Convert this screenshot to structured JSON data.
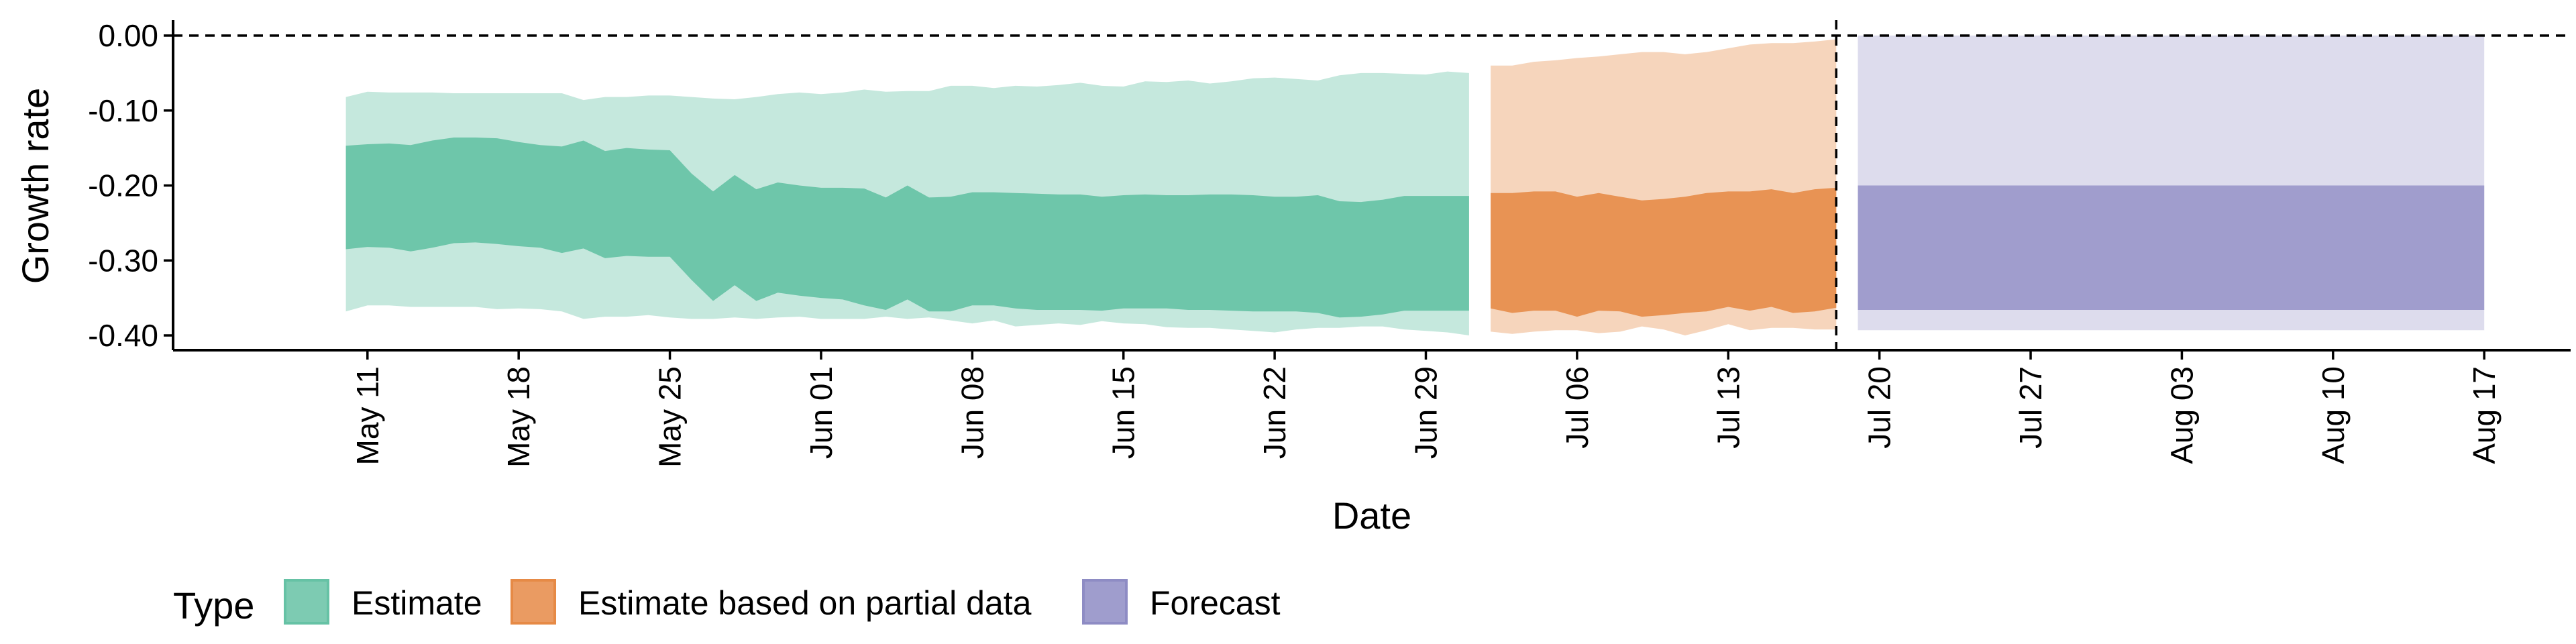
{
  "chart_data": {
    "type": "area",
    "title": "",
    "xlabel": "Date",
    "ylabel": "Growth rate",
    "x_is_date": true,
    "xlim": [
      "2020-05-02",
      "2020-08-21"
    ],
    "ylim": [
      -0.42,
      0.02
    ],
    "y_ticks": [
      0.0,
      -0.1,
      -0.2,
      -0.3,
      -0.4
    ],
    "y_tick_labels": [
      "0.00",
      "-0.10",
      "-0.20",
      "-0.30",
      "-0.40"
    ],
    "x_ticks": [
      "2020-05-11",
      "2020-05-18",
      "2020-05-25",
      "2020-06-01",
      "2020-06-08",
      "2020-06-15",
      "2020-06-22",
      "2020-06-29",
      "2020-07-06",
      "2020-07-13",
      "2020-07-20",
      "2020-07-27",
      "2020-08-03",
      "2020-08-10",
      "2020-08-17"
    ],
    "x_tick_labels": [
      "May 11",
      "May 18",
      "May 25",
      "Jun 01",
      "Jun 08",
      "Jun 15",
      "Jun 22",
      "Jun 29",
      "Jul 06",
      "Jul 13",
      "Jul 20",
      "Jul 27",
      "Aug 03",
      "Aug 10",
      "Aug 17"
    ],
    "reference_lines": {
      "horizontal_y": 0.0,
      "vertical_x": "2020-07-18"
    },
    "grid": false,
    "legend": {
      "title": "Type",
      "position": "bottom",
      "entries": [
        {
          "label": "Estimate",
          "color": "#66c2a5"
        },
        {
          "label": "Estimate based on partial data",
          "color": "#e68a46"
        },
        {
          "label": "Forecast",
          "color": "#8e8cc4"
        }
      ]
    },
    "series": [
      {
        "name": "Estimate",
        "fill_color": "#66c2a5",
        "inner_opacity": 0.92,
        "outer_opacity": 0.38,
        "x": [
          "2020-05-10",
          "2020-05-11",
          "2020-05-12",
          "2020-05-13",
          "2020-05-14",
          "2020-05-15",
          "2020-05-16",
          "2020-05-17",
          "2020-05-18",
          "2020-05-19",
          "2020-05-20",
          "2020-05-21",
          "2020-05-22",
          "2020-05-23",
          "2020-05-24",
          "2020-05-25",
          "2020-05-26",
          "2020-05-27",
          "2020-05-28",
          "2020-05-29",
          "2020-05-30",
          "2020-05-31",
          "2020-06-01",
          "2020-06-02",
          "2020-06-03",
          "2020-06-04",
          "2020-06-05",
          "2020-06-06",
          "2020-06-07",
          "2020-06-08",
          "2020-06-09",
          "2020-06-10",
          "2020-06-11",
          "2020-06-12",
          "2020-06-13",
          "2020-06-14",
          "2020-06-15",
          "2020-06-16",
          "2020-06-17",
          "2020-06-18",
          "2020-06-19",
          "2020-06-20",
          "2020-06-21",
          "2020-06-22",
          "2020-06-23",
          "2020-06-24",
          "2020-06-25",
          "2020-06-26",
          "2020-06-27",
          "2020-06-28",
          "2020-06-29",
          "2020-06-30",
          "2020-07-01"
        ],
        "lower_90": [
          -0.368,
          -0.36,
          -0.36,
          -0.362,
          -0.362,
          -0.362,
          -0.362,
          -0.365,
          -0.364,
          -0.365,
          -0.368,
          -0.378,
          -0.375,
          -0.375,
          -0.373,
          -0.376,
          -0.378,
          -0.378,
          -0.376,
          -0.378,
          -0.376,
          -0.375,
          -0.378,
          -0.378,
          -0.378,
          -0.375,
          -0.378,
          -0.376,
          -0.38,
          -0.384,
          -0.38,
          -0.388,
          -0.386,
          -0.384,
          -0.386,
          -0.381,
          -0.384,
          -0.385,
          -0.389,
          -0.39,
          -0.39,
          -0.392,
          -0.394,
          -0.396,
          -0.392,
          -0.39,
          -0.39,
          -0.388,
          -0.388,
          -0.392,
          -0.394,
          -0.396,
          -0.4
        ],
        "lower_50": [
          -0.285,
          -0.282,
          -0.283,
          -0.288,
          -0.283,
          -0.277,
          -0.276,
          -0.278,
          -0.281,
          -0.283,
          -0.29,
          -0.284,
          -0.297,
          -0.294,
          -0.295,
          -0.295,
          -0.326,
          -0.354,
          -0.333,
          -0.354,
          -0.343,
          -0.347,
          -0.35,
          -0.352,
          -0.36,
          -0.366,
          -0.352,
          -0.368,
          -0.368,
          -0.36,
          -0.36,
          -0.364,
          -0.366,
          -0.366,
          -0.366,
          -0.367,
          -0.364,
          -0.364,
          -0.364,
          -0.366,
          -0.366,
          -0.367,
          -0.368,
          -0.368,
          -0.368,
          -0.37,
          -0.376,
          -0.375,
          -0.372,
          -0.367,
          -0.367,
          -0.367,
          -0.367
        ],
        "upper_50": [
          -0.147,
          -0.145,
          -0.144,
          -0.146,
          -0.14,
          -0.136,
          -0.136,
          -0.137,
          -0.142,
          -0.146,
          -0.148,
          -0.14,
          -0.154,
          -0.15,
          -0.152,
          -0.153,
          -0.184,
          -0.208,
          -0.186,
          -0.205,
          -0.196,
          -0.2,
          -0.203,
          -0.203,
          -0.204,
          -0.216,
          -0.2,
          -0.216,
          -0.215,
          -0.209,
          -0.209,
          -0.21,
          -0.211,
          -0.212,
          -0.212,
          -0.215,
          -0.213,
          -0.212,
          -0.213,
          -0.213,
          -0.212,
          -0.212,
          -0.213,
          -0.215,
          -0.215,
          -0.213,
          -0.221,
          -0.222,
          -0.219,
          -0.214,
          -0.214,
          -0.214,
          -0.214
        ],
        "upper_90": [
          -0.082,
          -0.075,
          -0.076,
          -0.076,
          -0.076,
          -0.077,
          -0.077,
          -0.077,
          -0.077,
          -0.077,
          -0.077,
          -0.086,
          -0.082,
          -0.082,
          -0.08,
          -0.08,
          -0.082,
          -0.084,
          -0.085,
          -0.082,
          -0.078,
          -0.076,
          -0.078,
          -0.076,
          -0.072,
          -0.075,
          -0.074,
          -0.074,
          -0.067,
          -0.067,
          -0.07,
          -0.067,
          -0.068,
          -0.066,
          -0.063,
          -0.067,
          -0.068,
          -0.061,
          -0.062,
          -0.06,
          -0.064,
          -0.061,
          -0.057,
          -0.056,
          -0.058,
          -0.06,
          -0.053,
          -0.05,
          -0.05,
          -0.051,
          -0.052,
          -0.048,
          -0.05
        ]
      },
      {
        "name": "Estimate based on partial data",
        "fill_color": "#e68a46",
        "inner_opacity": 0.88,
        "outer_opacity": 0.36,
        "x": [
          "2020-07-02",
          "2020-07-03",
          "2020-07-04",
          "2020-07-05",
          "2020-07-06",
          "2020-07-07",
          "2020-07-08",
          "2020-07-09",
          "2020-07-10",
          "2020-07-11",
          "2020-07-12",
          "2020-07-13",
          "2020-07-14",
          "2020-07-15",
          "2020-07-16",
          "2020-07-17",
          "2020-07-18"
        ],
        "lower_90": [
          -0.395,
          -0.398,
          -0.395,
          -0.393,
          -0.393,
          -0.397,
          -0.395,
          -0.388,
          -0.392,
          -0.4,
          -0.393,
          -0.385,
          -0.393,
          -0.39,
          -0.39,
          -0.392,
          -0.392
        ],
        "lower_50": [
          -0.364,
          -0.37,
          -0.367,
          -0.367,
          -0.375,
          -0.367,
          -0.368,
          -0.375,
          -0.373,
          -0.37,
          -0.368,
          -0.362,
          -0.367,
          -0.362,
          -0.37,
          -0.368,
          -0.363
        ],
        "upper_50": [
          -0.21,
          -0.21,
          -0.208,
          -0.208,
          -0.215,
          -0.21,
          -0.215,
          -0.22,
          -0.218,
          -0.215,
          -0.21,
          -0.208,
          -0.208,
          -0.205,
          -0.21,
          -0.205,
          -0.203
        ],
        "upper_90": [
          -0.04,
          -0.04,
          -0.035,
          -0.033,
          -0.03,
          -0.028,
          -0.025,
          -0.022,
          -0.022,
          -0.025,
          -0.022,
          -0.017,
          -0.012,
          -0.01,
          -0.01,
          -0.008,
          -0.005
        ]
      },
      {
        "name": "Forecast",
        "fill_color": "#8e8cc4",
        "inner_opacity": 0.78,
        "outer_opacity": 0.3,
        "x": [
          "2020-07-19",
          "2020-08-17"
        ],
        "lower_90": [
          -0.393,
          -0.393
        ],
        "lower_50": [
          -0.366,
          -0.366
        ],
        "upper_50": [
          -0.2,
          -0.2
        ],
        "upper_90": [
          0.0,
          0.0
        ]
      }
    ]
  }
}
